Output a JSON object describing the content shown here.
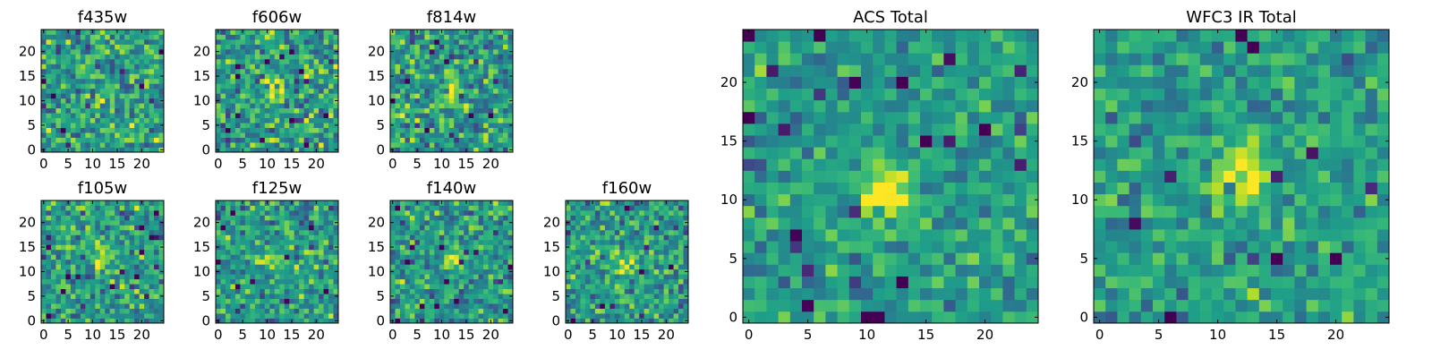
{
  "colormap": "viridis",
  "colors": [
    "#440154",
    "#3b528b",
    "#21918c",
    "#5ec962",
    "#fde725"
  ],
  "chart_data": [
    {
      "type": "heatmap",
      "title": "f435w",
      "grid": [
        25,
        25
      ],
      "seed": 11,
      "blob": {
        "x": 12,
        "y": 11,
        "amplitude": 0.15
      },
      "noise": 0.5,
      "xticks": [
        0,
        5,
        10,
        15,
        20
      ],
      "yticks": [
        0,
        5,
        10,
        15,
        20
      ],
      "xlim": [
        -0.5,
        24.5
      ],
      "ylim": [
        -0.5,
        24.5
      ],
      "grid_lines": false
    },
    {
      "type": "heatmap",
      "title": "f606w",
      "grid": [
        25,
        25
      ],
      "seed": 23,
      "blob": {
        "x": 12,
        "y": 12,
        "amplitude": 0.45
      },
      "noise": 0.5,
      "xticks": [
        0,
        5,
        10,
        15,
        20
      ],
      "yticks": [
        0,
        5,
        10,
        15,
        20
      ],
      "xlim": [
        -0.5,
        24.5
      ],
      "ylim": [
        -0.5,
        24.5
      ],
      "grid_lines": false
    },
    {
      "type": "heatmap",
      "title": "f814w",
      "grid": [
        25,
        25
      ],
      "seed": 37,
      "blob": {
        "x": 12,
        "y": 12,
        "amplitude": 0.4
      },
      "noise": 0.5,
      "xticks": [
        0,
        5,
        10,
        15,
        20
      ],
      "yticks": [
        0,
        5,
        10,
        15,
        20
      ],
      "xlim": [
        -0.5,
        24.5
      ],
      "ylim": [
        -0.5,
        24.5
      ],
      "grid_lines": false
    },
    {
      "type": "heatmap",
      "title": "f105w",
      "grid": [
        25,
        25
      ],
      "seed": 41,
      "blob": {
        "x": 12,
        "y": 13,
        "amplitude": 0.3
      },
      "noise": 0.45,
      "xticks": [
        0,
        5,
        10,
        15,
        20
      ],
      "yticks": [
        0,
        5,
        10,
        15,
        20
      ],
      "xlim": [
        -0.5,
        24.5
      ],
      "ylim": [
        -0.5,
        24.5
      ],
      "grid_lines": false
    },
    {
      "type": "heatmap",
      "title": "f125w",
      "grid": [
        25,
        25
      ],
      "seed": 53,
      "blob": {
        "x": 10,
        "y": 12,
        "amplitude": 0.25
      },
      "noise": 0.45,
      "xticks": [
        0,
        5,
        10,
        15,
        20
      ],
      "yticks": [
        0,
        5,
        10,
        15,
        20
      ],
      "xlim": [
        -0.5,
        24.5
      ],
      "ylim": [
        -0.5,
        24.5
      ],
      "grid_lines": false
    },
    {
      "type": "heatmap",
      "title": "f140w",
      "grid": [
        25,
        25
      ],
      "seed": 67,
      "blob": {
        "x": 13,
        "y": 12,
        "amplitude": 0.3
      },
      "noise": 0.45,
      "xticks": [
        0,
        5,
        10,
        15,
        20
      ],
      "yticks": [
        0,
        5,
        10,
        15,
        20
      ],
      "xlim": [
        -0.5,
        24.5
      ],
      "ylim": [
        -0.5,
        24.5
      ],
      "grid_lines": false
    },
    {
      "type": "heatmap",
      "title": "f160w",
      "grid": [
        25,
        25
      ],
      "seed": 79,
      "blob": {
        "x": 12,
        "y": 12,
        "amplitude": 0.3
      },
      "noise": 0.45,
      "xticks": [
        0,
        5,
        10,
        15,
        20
      ],
      "yticks": [
        0,
        5,
        10,
        15,
        20
      ],
      "xlim": [
        -0.5,
        24.5
      ],
      "ylim": [
        -0.5,
        24.5
      ],
      "grid_lines": false
    },
    {
      "type": "heatmap",
      "title": "ACS Total",
      "grid": [
        25,
        25
      ],
      "seed": 83,
      "blob": {
        "x": 12,
        "y": 11,
        "amplitude": 0.55
      },
      "noise": 0.35,
      "xticks": [
        0,
        5,
        10,
        15,
        20
      ],
      "yticks": [
        0,
        5,
        10,
        15,
        20
      ],
      "xlim": [
        -0.5,
        24.5
      ],
      "ylim": [
        -0.5,
        24.5
      ],
      "grid_lines": false
    },
    {
      "type": "heatmap",
      "title": "WFC3 IR Total",
      "grid": [
        25,
        25
      ],
      "seed": 97,
      "blob": {
        "x": 12,
        "y": 12,
        "amplitude": 0.5
      },
      "noise": 0.35,
      "xticks": [
        0,
        5,
        10,
        15,
        20
      ],
      "yticks": [
        0,
        5,
        10,
        15,
        20
      ],
      "xlim": [
        -0.5,
        24.5
      ],
      "ylim": [
        -0.5,
        24.5
      ],
      "grid_lines": false
    }
  ]
}
